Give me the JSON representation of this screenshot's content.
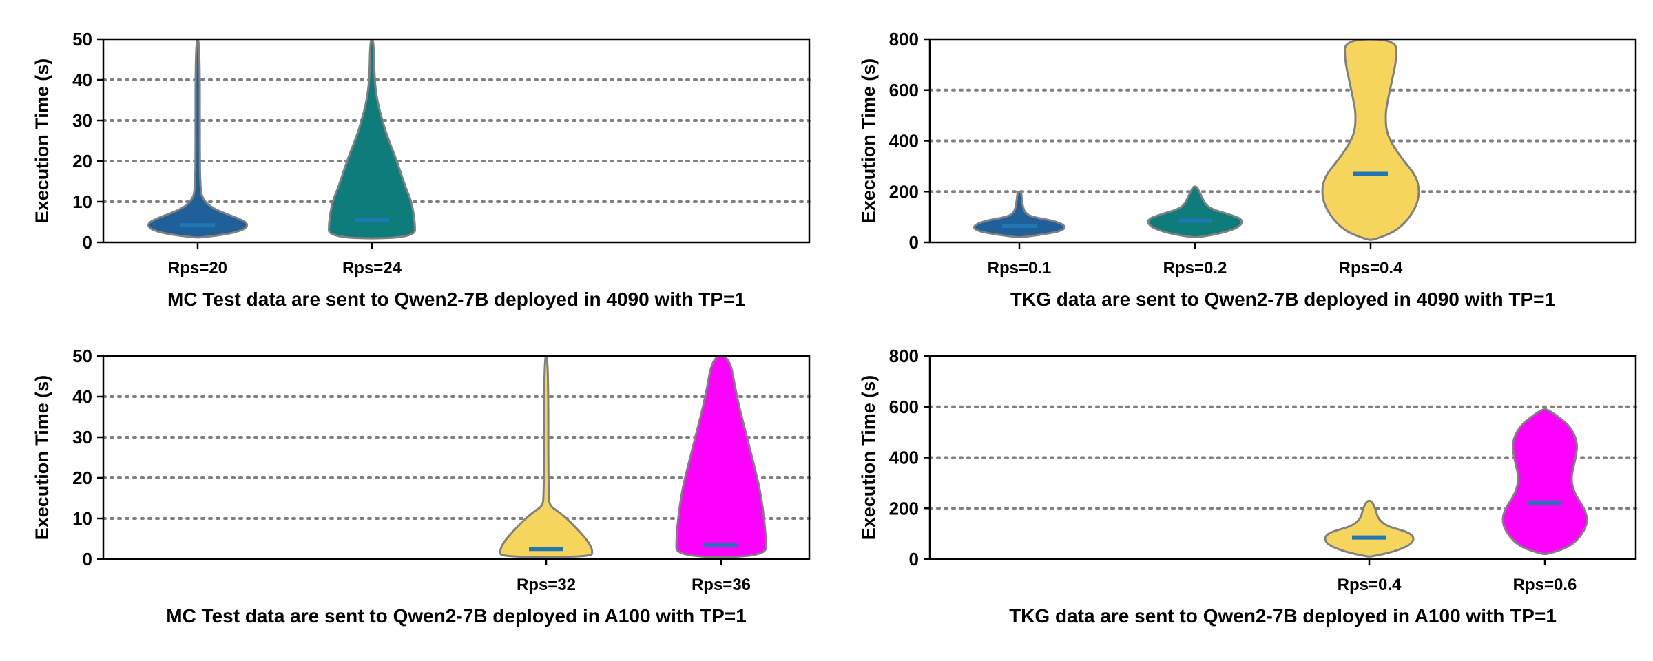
{
  "chart_data": [
    {
      "type": "violin",
      "xlabel": "MC Test data are sent to Qwen2-7B deployed in 4090 with TP=1",
      "ylabel": "Execution Time (s)",
      "ylim": [
        0,
        50
      ],
      "yticks": [
        0,
        10,
        20,
        30,
        40,
        50
      ],
      "grid": "horizontal dotted at 10, 20, 30, 40",
      "categories": [
        "Rps=20",
        "Rps=24"
      ],
      "series": [
        {
          "category": "Rps=20",
          "color": "#1f5f9a",
          "median": 4.2,
          "profile": [
            [
              1.2,
              0.03
            ],
            [
              2,
              0.34
            ],
            [
              3,
              0.52
            ],
            [
              4,
              0.58
            ],
            [
              5,
              0.56
            ],
            [
              6,
              0.46
            ],
            [
              7,
              0.33
            ],
            [
              8,
              0.22
            ],
            [
              9,
              0.14
            ],
            [
              10,
              0.09
            ],
            [
              11,
              0.06
            ],
            [
              12,
              0.04
            ],
            [
              15,
              0.03
            ],
            [
              20,
              0.025
            ],
            [
              50,
              0.025
            ]
          ]
        },
        {
          "category": "Rps=24",
          "color": "#0e7c7b",
          "median": 5.5,
          "profile": [
            [
              1,
              0.5
            ],
            [
              5,
              0.5
            ],
            [
              10,
              0.46
            ],
            [
              13,
              0.4
            ],
            [
              20,
              0.29
            ],
            [
              26,
              0.18
            ],
            [
              30,
              0.12
            ],
            [
              35,
              0.06
            ],
            [
              40,
              0.03
            ],
            [
              50,
              0.02
            ]
          ]
        }
      ]
    },
    {
      "type": "violin",
      "xlabel": "TKG data are sent to Qwen2-7B deployed in 4090 with TP=1",
      "ylabel": "Execution Time (s)",
      "ylim": [
        0,
        800
      ],
      "yticks": [
        0,
        200,
        400,
        600,
        800
      ],
      "grid": "horizontal dotted at 200, 400, 600",
      "categories": [
        "Rps=0.1",
        "Rps=0.2",
        "Rps=0.4"
      ],
      "series": [
        {
          "category": "Rps=0.1",
          "color": "#1f5f9a",
          "median": 65,
          "profile": [
            [
              20,
              0.02
            ],
            [
              30,
              0.25
            ],
            [
              45,
              0.5
            ],
            [
              65,
              0.54
            ],
            [
              85,
              0.4
            ],
            [
              100,
              0.15
            ],
            [
              115,
              0.07
            ],
            [
              140,
              0.04
            ],
            [
              170,
              0.03
            ],
            [
              200,
              0.02
            ]
          ]
        },
        {
          "category": "Rps=0.2",
          "color": "#0e7c7b",
          "median": 85,
          "profile": [
            [
              20,
              0.03
            ],
            [
              35,
              0.3
            ],
            [
              60,
              0.52
            ],
            [
              90,
              0.56
            ],
            [
              110,
              0.4
            ],
            [
              130,
              0.2
            ],
            [
              150,
              0.12
            ],
            [
              180,
              0.08
            ],
            [
              200,
              0.05
            ],
            [
              220,
              0.02
            ]
          ]
        },
        {
          "category": "Rps=0.4",
          "color": "#f6d55c",
          "median": 270,
          "profile": [
            [
              10,
              0.04
            ],
            [
              50,
              0.34
            ],
            [
              150,
              0.56
            ],
            [
              250,
              0.56
            ],
            [
              330,
              0.36
            ],
            [
              420,
              0.19
            ],
            [
              500,
              0.17
            ],
            [
              560,
              0.2
            ],
            [
              640,
              0.25
            ],
            [
              720,
              0.3
            ],
            [
              800,
              0.3
            ]
          ]
        }
      ]
    },
    {
      "type": "violin",
      "xlabel": "MC Test data are sent to Qwen2-7B deployed in A100 with TP=1",
      "ylabel": "Execution Time (s)",
      "ylim": [
        0,
        50
      ],
      "yticks": [
        0,
        10,
        20,
        30,
        40,
        50
      ],
      "grid": "horizontal dotted at 10, 20, 30, 40",
      "categories": [
        "Rps=32",
        "Rps=36"
      ],
      "series": [
        {
          "category": "Rps=32",
          "color": "#f6d55c",
          "median": 2.5,
          "profile": [
            [
              0.5,
              0.52
            ],
            [
              2,
              0.54
            ],
            [
              4,
              0.5
            ],
            [
              7,
              0.38
            ],
            [
              10,
              0.24
            ],
            [
              12,
              0.12
            ],
            [
              13,
              0.05
            ],
            [
              15,
              0.025
            ],
            [
              50,
              0.025
            ]
          ]
        },
        {
          "category": "Rps=36",
          "color": "#ff00ff",
          "median": 3.5,
          "profile": [
            [
              0.5,
              0.52
            ],
            [
              5,
              0.52
            ],
            [
              10,
              0.5
            ],
            [
              16,
              0.46
            ],
            [
              20,
              0.42
            ],
            [
              30,
              0.3
            ],
            [
              40,
              0.18
            ],
            [
              50,
              0.1
            ]
          ]
        }
      ]
    },
    {
      "type": "violin",
      "xlabel": "TKG data are sent to Qwen2-7B deployed in A100 with TP=1",
      "ylabel": "Execution Time (s)",
      "ylim": [
        0,
        800
      ],
      "yticks": [
        0,
        200,
        400,
        600,
        800
      ],
      "grid": "horizontal dotted at 200, 400, 600",
      "categories": [
        "Rps=0.4",
        "Rps=0.6"
      ],
      "series": [
        {
          "category": "Rps=0.4",
          "color": "#f6d55c",
          "median": 85,
          "profile": [
            [
              10,
              0.02
            ],
            [
              30,
              0.3
            ],
            [
              60,
              0.5
            ],
            [
              90,
              0.52
            ],
            [
              110,
              0.42
            ],
            [
              130,
              0.2
            ],
            [
              160,
              0.1
            ],
            [
              190,
              0.08
            ],
            [
              215,
              0.05
            ],
            [
              230,
              0.02
            ]
          ]
        },
        {
          "category": "Rps=0.6",
          "color": "#ff00ff",
          "median": 220,
          "profile": [
            [
              20,
              0.04
            ],
            [
              50,
              0.3
            ],
            [
              100,
              0.44
            ],
            [
              150,
              0.5
            ],
            [
              200,
              0.46
            ],
            [
              260,
              0.34
            ],
            [
              320,
              0.3
            ],
            [
              400,
              0.36
            ],
            [
              460,
              0.38
            ],
            [
              520,
              0.3
            ],
            [
              560,
              0.16
            ],
            [
              590,
              0.03
            ]
          ]
        }
      ]
    }
  ]
}
